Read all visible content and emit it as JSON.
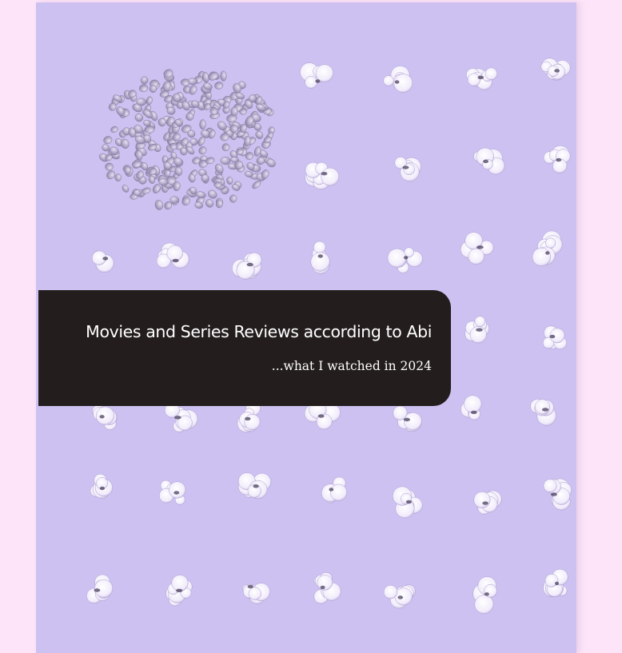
{
  "blog": {
    "title": "Movies and Series Reviews according to Abi",
    "subtitle": "...what I watched in 2024"
  },
  "cover_image": {
    "icon": "popcorn-kernels-illustration"
  },
  "colors": {
    "page_background": "#fde4f8",
    "cover_background": "#cdc1f1",
    "banner_background": "#231e1d",
    "banner_text": "#ffffff"
  }
}
